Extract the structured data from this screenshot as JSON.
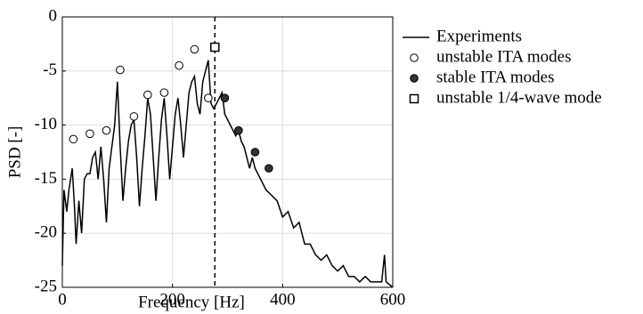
{
  "chart_data": {
    "type": "line",
    "xlabel": "Frequency [Hz]",
    "ylabel": "PSD [-]",
    "xlim": [
      0,
      600
    ],
    "ylim": [
      -25,
      0
    ],
    "xticks": [
      0,
      200,
      400,
      600
    ],
    "yticks": [
      0,
      -5,
      -10,
      -15,
      -20,
      -25
    ],
    "grid": true,
    "legend": "outside right",
    "vlines": [
      {
        "x": 277,
        "style": "dashed",
        "color": "#000000"
      }
    ],
    "series": [
      {
        "name": "Experiments",
        "color": "#000000",
        "marker": "none",
        "x": [
          0,
          3,
          8,
          12,
          18,
          22,
          25,
          30,
          35,
          40,
          45,
          50,
          55,
          60,
          65,
          70,
          75,
          80,
          85,
          90,
          95,
          100,
          105,
          110,
          115,
          120,
          125,
          130,
          135,
          140,
          145,
          150,
          155,
          160,
          165,
          170,
          175,
          180,
          185,
          190,
          195,
          200,
          205,
          210,
          215,
          220,
          225,
          230,
          235,
          240,
          245,
          250,
          255,
          260,
          265,
          270,
          275,
          280,
          285,
          290,
          295,
          300,
          305,
          310,
          315,
          320,
          325,
          330,
          335,
          340,
          345,
          350,
          355,
          360,
          370,
          380,
          390,
          400,
          410,
          420,
          430,
          440,
          450,
          460,
          470,
          480,
          490,
          500,
          510,
          520,
          530,
          540,
          550,
          560,
          570,
          580,
          585,
          588,
          600
        ],
        "values": [
          -23,
          -16,
          -18,
          -16,
          -14,
          -17.5,
          -21,
          -17,
          -20,
          -15,
          -14.5,
          -14.5,
          -13,
          -12.5,
          -15,
          -12,
          -15,
          -19,
          -14,
          -12,
          -10,
          -6,
          -12,
          -17,
          -14,
          -11.5,
          -10,
          -9.5,
          -13,
          -17.5,
          -14,
          -11,
          -7.5,
          -9,
          -13,
          -17,
          -13,
          -9.5,
          -7.5,
          -11,
          -15,
          -12,
          -9,
          -7.5,
          -10,
          -13,
          -10,
          -7,
          -6,
          -5.5,
          -8,
          -9,
          -6,
          -5,
          -4,
          -8,
          -8.5,
          -8,
          -7.5,
          -7,
          -9,
          -9.5,
          -10,
          -10.5,
          -11,
          -10.5,
          -11.5,
          -12,
          -13,
          -14,
          -13,
          -14,
          -14.5,
          -15,
          -16,
          -16.5,
          -17,
          -18.5,
          -18,
          -19.5,
          -19,
          -21,
          -21,
          -22,
          -22.5,
          -22,
          -23,
          -23.5,
          -23,
          -24,
          -24,
          -24.5,
          -24,
          -24.5,
          -24.5,
          -24.5,
          -22,
          -24.5,
          -25
        ]
      },
      {
        "name": "unstable ITA modes",
        "color": "#000000",
        "marker": "circle-open",
        "x": [
          20,
          50,
          80,
          105,
          130,
          155,
          185,
          212,
          240,
          265
        ],
        "values": [
          -11.3,
          -10.8,
          -10.5,
          -4.9,
          -9.2,
          -7.2,
          -7,
          -4.5,
          -3,
          -7.5
        ]
      },
      {
        "name": "stable ITA modes",
        "color": "#000000",
        "marker": "circle-filled",
        "x": [
          295,
          320,
          350,
          375
        ],
        "values": [
          -7.5,
          -10.5,
          -12.5,
          -14
        ]
      },
      {
        "name": "unstable 1/4-wave mode",
        "color": "#000000",
        "marker": "square-open",
        "x": [
          277
        ],
        "values": [
          -2.8
        ]
      }
    ]
  }
}
